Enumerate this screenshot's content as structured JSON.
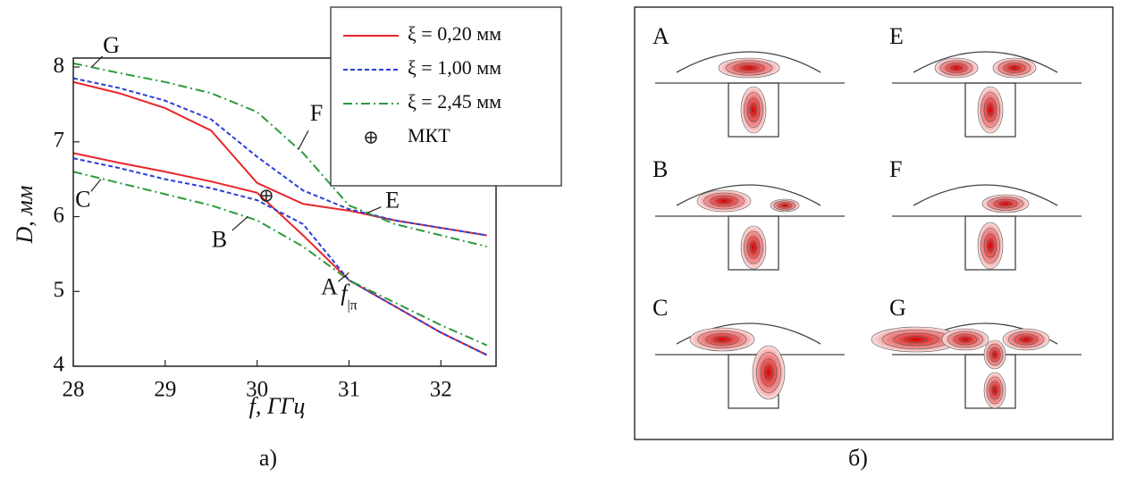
{
  "chart_data": {
    "type": "line",
    "x_label": "f, ГГц",
    "y_label": "D, мм",
    "caption": "а)",
    "x": [
      28,
      28.5,
      29,
      29.5,
      30,
      30.5,
      31,
      31.5,
      32,
      32.5
    ],
    "series": [
      {
        "name": "ξ = 0,20 мм",
        "color": "#e8262a",
        "dash": "solid",
        "upper": [
          7.8,
          7.65,
          7.45,
          7.15,
          6.45,
          6.17,
          6.08,
          5.95,
          5.85,
          5.75
        ],
        "lower": [
          6.85,
          6.72,
          6.6,
          6.47,
          6.32,
          5.75,
          5.15,
          4.8,
          4.45,
          4.15
        ]
      },
      {
        "name": "ξ = 1,00 мм",
        "color": "#2b3fd6",
        "dash": "dashed",
        "upper": [
          7.85,
          7.72,
          7.55,
          7.3,
          6.8,
          6.35,
          6.1,
          5.95,
          5.85,
          5.75
        ],
        "lower": [
          6.78,
          6.65,
          6.5,
          6.38,
          6.22,
          5.9,
          5.15,
          4.8,
          4.45,
          4.15
        ]
      },
      {
        "name": "ξ = 2,45 мм",
        "color": "#2e9a3c",
        "dash": "dashdot",
        "upper": [
          8.05,
          7.92,
          7.8,
          7.65,
          7.4,
          6.85,
          6.15,
          5.9,
          5.75,
          5.6
        ],
        "lower": [
          6.6,
          6.45,
          6.3,
          6.15,
          5.95,
          5.6,
          5.15,
          4.85,
          4.55,
          4.28
        ]
      }
    ],
    "marker": {
      "name": "МКТ",
      "x": 30.1,
      "y": 6.28
    },
    "annotations": [
      {
        "text": "A",
        "x": 31.0,
        "y": 5.25
      },
      {
        "text": "B",
        "x": 29.9,
        "y": 6.0
      },
      {
        "text": "C",
        "x": 28.3,
        "y": 6.5
      },
      {
        "text": "E",
        "x": 31.2,
        "y": 6.05
      },
      {
        "text": "F",
        "x": 30.45,
        "y": 6.9
      },
      {
        "text": "G",
        "x": 28.2,
        "y": 8.0
      },
      {
        "text": "f",
        "sub": "|π",
        "x": 31.0,
        "y": 4.45
      }
    ],
    "xlim": [
      28,
      32.6
    ],
    "xticks": [
      28,
      29,
      30,
      31,
      32
    ],
    "ylim": [
      4,
      8.12
    ],
    "yticks": [
      4,
      5,
      6,
      7,
      8
    ]
  },
  "panel_b": {
    "caption": "б)",
    "modes": [
      "A",
      "E",
      "B",
      "F",
      "C",
      "G"
    ]
  }
}
